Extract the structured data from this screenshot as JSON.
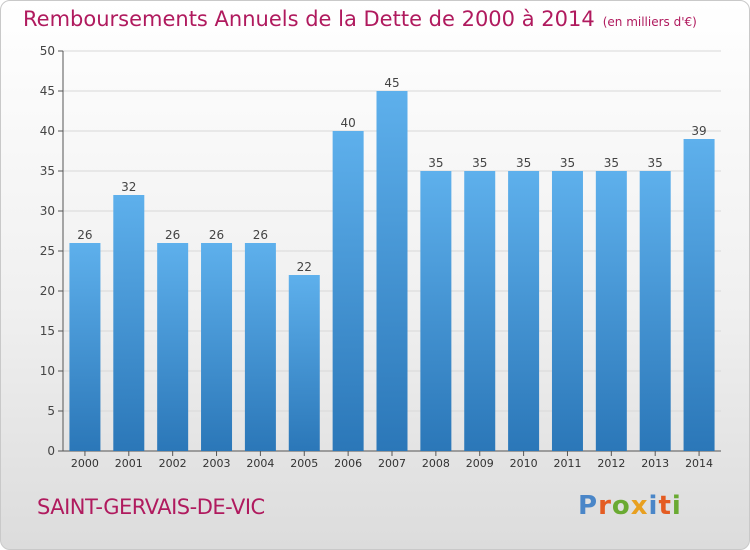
{
  "title": "Remboursements Annuels de la Dette de 2000 à 2014",
  "subtitle": "(en milliers d'€)",
  "town": "SAINT-GERVAIS-DE-VIC",
  "logo": "Proxiti",
  "colors": {
    "title": "#b01a5e",
    "bar_light": "#5eb0ec",
    "bar_dark": "#2b77b8",
    "logo_letters": [
      "#4a86c8",
      "#e45c22",
      "#6aaa32",
      "#e8a020",
      "#4a86c8",
      "#e45c22",
      "#6aaa32"
    ]
  },
  "chart_data": {
    "type": "bar",
    "title": "Remboursements Annuels de la Dette de 2000 à 2014",
    "subtitle": "(en milliers d'€)",
    "categories": [
      "2000",
      "2001",
      "2002",
      "2003",
      "2004",
      "2005",
      "2006",
      "2007",
      "2008",
      "2009",
      "2010",
      "2011",
      "2012",
      "2013",
      "2014"
    ],
    "values": [
      26,
      32,
      26,
      26,
      26,
      22,
      40,
      45,
      35,
      35,
      35,
      35,
      35,
      35,
      39
    ],
    "ylim": [
      0,
      50
    ],
    "yticks": [
      0,
      5,
      10,
      15,
      20,
      25,
      30,
      35,
      40,
      45,
      50
    ],
    "grid": "horizontal",
    "data_labels": true
  }
}
